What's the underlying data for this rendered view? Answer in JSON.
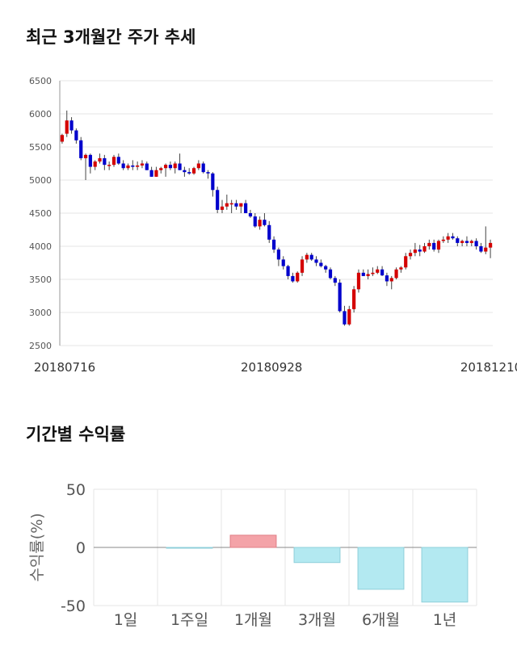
{
  "section1": {
    "title": "최근 3개월간 주가 추세"
  },
  "section2": {
    "title": "기간별 수익률"
  },
  "colors": {
    "up": "#d40000",
    "down": "#0000cc",
    "grid": "#e6e6e6",
    "bar_positive": "#f4a3a8",
    "bar_negative": "#b3e9f1"
  },
  "chart_data": [
    {
      "type": "candlestick",
      "title": "최근 3개월간 주가 추세",
      "x_ticks": [
        "20180716",
        "20180928",
        "20181210"
      ],
      "y_ticks": [
        2500,
        3000,
        3500,
        4000,
        4500,
        5000,
        5500,
        6000,
        6500
      ],
      "ylim": [
        2500,
        6500
      ],
      "grid": true,
      "ohlc": [
        [
          5580,
          5700,
          5550,
          5680
        ],
        [
          5700,
          6050,
          5650,
          5900
        ],
        [
          5900,
          5950,
          5700,
          5750
        ],
        [
          5750,
          5780,
          5550,
          5600
        ],
        [
          5600,
          5650,
          5300,
          5330
        ],
        [
          5330,
          5400,
          5000,
          5380
        ],
        [
          5380,
          5400,
          5100,
          5200
        ],
        [
          5200,
          5300,
          5150,
          5280
        ],
        [
          5280,
          5400,
          5250,
          5330
        ],
        [
          5330,
          5380,
          5150,
          5230
        ],
        [
          5230,
          5280,
          5150,
          5230
        ],
        [
          5230,
          5380,
          5200,
          5350
        ],
        [
          5350,
          5400,
          5230,
          5250
        ],
        [
          5250,
          5300,
          5150,
          5180
        ],
        [
          5180,
          5250,
          5150,
          5220
        ],
        [
          5220,
          5300,
          5150,
          5200
        ],
        [
          5200,
          5280,
          5150,
          5220
        ],
        [
          5220,
          5300,
          5180,
          5250
        ],
        [
          5250,
          5280,
          5150,
          5150
        ],
        [
          5150,
          5200,
          5050,
          5050
        ],
        [
          5050,
          5200,
          5050,
          5150
        ],
        [
          5150,
          5200,
          5100,
          5180
        ],
        [
          5180,
          5250,
          5050,
          5230
        ],
        [
          5230,
          5280,
          5150,
          5180
        ],
        [
          5180,
          5280,
          5100,
          5250
        ],
        [
          5250,
          5400,
          5150,
          5150
        ],
        [
          5150,
          5200,
          5050,
          5120
        ],
        [
          5120,
          5180,
          5080,
          5100
        ],
        [
          5100,
          5200,
          5080,
          5180
        ],
        [
          5180,
          5300,
          5150,
          5250
        ],
        [
          5250,
          5280,
          5100,
          5120
        ],
        [
          5120,
          5150,
          5020,
          5100
        ],
        [
          5100,
          5120,
          4750,
          4850
        ],
        [
          4850,
          4900,
          4500,
          4550
        ],
        [
          4550,
          4700,
          4500,
          4600
        ],
        [
          4600,
          4780,
          4550,
          4650
        ],
        [
          4650,
          4700,
          4500,
          4650
        ],
        [
          4650,
          4700,
          4550,
          4600
        ],
        [
          4600,
          4650,
          4500,
          4650
        ],
        [
          4650,
          4700,
          4500,
          4500
        ],
        [
          4500,
          4550,
          4430,
          4450
        ],
        [
          4450,
          4500,
          4280,
          4300
        ],
        [
          4300,
          4450,
          4250,
          4400
        ],
        [
          4400,
          4500,
          4300,
          4320
        ],
        [
          4320,
          4380,
          4050,
          4100
        ],
        [
          4100,
          4150,
          3900,
          3950
        ],
        [
          3950,
          3980,
          3700,
          3800
        ],
        [
          3800,
          3850,
          3650,
          3700
        ],
        [
          3700,
          3720,
          3500,
          3550
        ],
        [
          3550,
          3600,
          3450,
          3470
        ],
        [
          3470,
          3620,
          3450,
          3600
        ],
        [
          3600,
          3850,
          3550,
          3800
        ],
        [
          3800,
          3900,
          3750,
          3870
        ],
        [
          3870,
          3900,
          3780,
          3800
        ],
        [
          3800,
          3850,
          3700,
          3750
        ],
        [
          3750,
          3800,
          3680,
          3700
        ],
        [
          3700,
          3720,
          3600,
          3650
        ],
        [
          3650,
          3680,
          3500,
          3520
        ],
        [
          3520,
          3550,
          3400,
          3450
        ],
        [
          3450,
          3500,
          3000,
          3020
        ],
        [
          3020,
          3100,
          2800,
          2820
        ],
        [
          2820,
          3100,
          2800,
          3050
        ],
        [
          3050,
          3400,
          3000,
          3350
        ],
        [
          3350,
          3650,
          3300,
          3600
        ],
        [
          3600,
          3650,
          3550,
          3550
        ],
        [
          3550,
          3650,
          3500,
          3580
        ],
        [
          3580,
          3680,
          3550,
          3600
        ],
        [
          3600,
          3700,
          3580,
          3650
        ],
        [
          3650,
          3700,
          3550,
          3560
        ],
        [
          3560,
          3600,
          3400,
          3470
        ],
        [
          3470,
          3550,
          3350,
          3520
        ],
        [
          3520,
          3680,
          3500,
          3650
        ],
        [
          3650,
          3700,
          3600,
          3680
        ],
        [
          3680,
          3900,
          3650,
          3850
        ],
        [
          3850,
          3950,
          3800,
          3900
        ],
        [
          3900,
          4050,
          3850,
          3950
        ],
        [
          3950,
          4020,
          3850,
          3920
        ],
        [
          3920,
          4050,
          3900,
          4000
        ],
        [
          4000,
          4100,
          3950,
          4050
        ],
        [
          4050,
          4100,
          3920,
          3950
        ],
        [
          3950,
          4100,
          3900,
          4080
        ],
        [
          4080,
          4150,
          4050,
          4100
        ],
        [
          4100,
          4200,
          4050,
          4150
        ],
        [
          4150,
          4200,
          4100,
          4120
        ],
        [
          4120,
          4150,
          4000,
          4050
        ],
        [
          4050,
          4100,
          4000,
          4080
        ],
        [
          4080,
          4150,
          4000,
          4050
        ],
        [
          4050,
          4100,
          4000,
          4080
        ],
        [
          4080,
          4120,
          3950,
          4000
        ],
        [
          4000,
          4050,
          3900,
          3920
        ],
        [
          3920,
          4300,
          3880,
          3980
        ],
        [
          3980,
          4100,
          3820,
          4050
        ]
      ]
    },
    {
      "type": "bar",
      "title": "기간별 수익률",
      "ylabel": "수익률(%)",
      "categories": [
        "1일",
        "1주일",
        "1개월",
        "3개월",
        "6개월",
        "1년"
      ],
      "values": [
        0,
        -0.5,
        10.5,
        -13,
        -36,
        -47
      ],
      "y_ticks": [
        "50",
        "0",
        "-50"
      ],
      "ylim": [
        -50,
        50
      ],
      "grid": true
    }
  ]
}
